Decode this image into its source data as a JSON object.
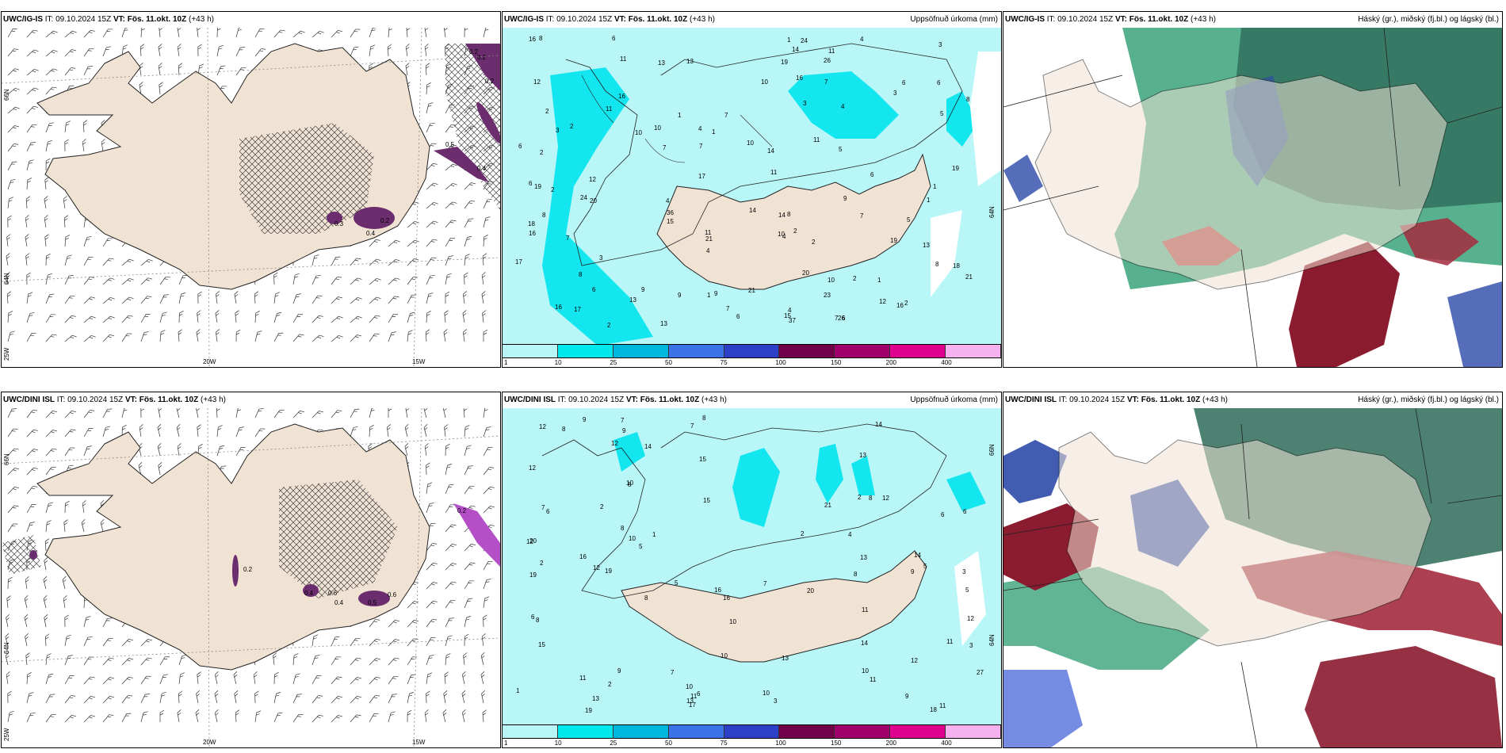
{
  "panels": [
    {
      "model": "UWC/IG-IS",
      "it_label": "IT:",
      "it": "09.10.2024 15Z",
      "vt_label": "VT:",
      "vt": "Fös. 11.okt. 10Z",
      "lead": "(+43 h)",
      "right": "",
      "grid_x": [
        "20W",
        "15W"
      ],
      "grid_y": [
        "66N",
        "64N",
        "25W"
      ],
      "contour_labels": [
        "0.2",
        "0.2",
        "0.2",
        "0.5",
        "0.4",
        "0.3",
        "0.4",
        "0.2"
      ]
    },
    {
      "model": "UWC/IG-IS",
      "it_label": "IT:",
      "it": "09.10.2024 15Z",
      "vt_label": "VT:",
      "vt": "Fös. 11.okt. 10Z",
      "lead": "(+43 h)",
      "right": "Uppsöfnuð úrkoma (mm)",
      "grid_y": [
        "64N"
      ],
      "precip": [
        "2",
        "2",
        "3",
        "4",
        "4",
        "7",
        "6",
        "8",
        "7",
        "10",
        "6",
        "6",
        "7",
        "11",
        "19",
        "18",
        "11",
        "16",
        "13",
        "11",
        "18",
        "14",
        "21",
        "17",
        "16",
        "24",
        "23",
        "19",
        "24",
        "21",
        "19",
        "15",
        "13",
        "12",
        "14",
        "6",
        "26",
        "17",
        "16",
        "16",
        "12",
        "10",
        "8",
        "13",
        "11",
        "10",
        "12",
        "4",
        "9",
        "5",
        "16",
        "3",
        "6",
        "8",
        "7",
        "6",
        "9",
        "11",
        "15",
        "14",
        "19",
        "10",
        "9",
        "8",
        "16",
        "13",
        "37",
        "20",
        "21",
        "13",
        "11",
        "10",
        "7",
        "20",
        "17",
        "14",
        "26",
        "36",
        "5",
        "4",
        "5",
        "7",
        "8",
        "6",
        "4",
        "2",
        "2",
        "1",
        "3",
        "4",
        "2",
        "1",
        "3",
        "2",
        "1",
        "2",
        "1",
        "4",
        "9",
        "8",
        "6",
        "7",
        "6",
        "7",
        "10",
        "2",
        "3",
        "1",
        "1",
        "1",
        "2"
      ]
    },
    {
      "model": "UWC/IG-IS",
      "it_label": "IT:",
      "it": "09.10.2024 15Z",
      "vt_label": "VT:",
      "vt": "Fös. 11.okt. 10Z",
      "lead": "(+43 h)",
      "right": "Háský (gr.), miðský (fj.bl.) og lágský (bl.)"
    },
    {
      "model": "UWC/DINI ISL",
      "it_label": "IT:",
      "it": "09.10.2024 15Z",
      "vt_label": "VT:",
      "vt": "Fös. 11.okt. 10Z",
      "lead": "(+43 h)",
      "right": "",
      "grid_x": [
        "20W",
        "15W"
      ],
      "grid_y": [
        "66N",
        "64N",
        "25W"
      ],
      "contour_labels": [
        "0.2",
        "0.4",
        "0.6",
        "0.2",
        "0.5",
        "0.4",
        "0.6"
      ]
    },
    {
      "model": "UWC/DINI ISL",
      "it_label": "IT:",
      "it": "09.10.2024 15Z",
      "vt_label": "VT:",
      "vt": "Fös. 11.okt. 10Z",
      "lead": "(+43 h)",
      "right": "Uppsöfnuð úrkoma (mm)",
      "grid_y": [
        "66N",
        "64N"
      ],
      "precip": [
        "2",
        "3",
        "5",
        "7",
        "6",
        "9",
        "11",
        "10",
        "8",
        "12",
        "8",
        "14",
        "16",
        "18",
        "20",
        "27",
        "19",
        "15",
        "12",
        "13",
        "19",
        "21",
        "20",
        "11",
        "19",
        "14",
        "16",
        "14",
        "12",
        "10",
        "8",
        "14",
        "15",
        "9",
        "10",
        "11",
        "13",
        "16",
        "12",
        "10",
        "9",
        "5",
        "7",
        "11",
        "8",
        "12",
        "6",
        "3",
        "2",
        "7",
        "10",
        "11",
        "13",
        "12",
        "8",
        "6",
        "8",
        "11",
        "13",
        "9",
        "12",
        "10",
        "8",
        "8",
        "13",
        "15",
        "12",
        "7",
        "9",
        "4",
        "6",
        "5",
        "2",
        "1",
        "3",
        "2",
        "1",
        "17",
        "7",
        "10",
        "5",
        "6",
        "2"
      ]
    },
    {
      "model": "UWC/DINI ISL",
      "it_label": "IT:",
      "it": "09.10.2024 15Z",
      "vt_label": "VT:",
      "vt": "Fös. 11.okt. 10Z",
      "lead": "(+43 h)",
      "right": "Háský (gr.), miðský (fj.bl.) og lágský (bl.)"
    }
  ],
  "colorbar": {
    "ticks": [
      "1",
      "10",
      "25",
      "50",
      "75",
      "100",
      "150",
      "200",
      "400"
    ],
    "colors": [
      "#b7f5f7",
      "#00e8ee",
      "#00b8dd",
      "#3a73e8",
      "#2d3fc7",
      "#70004a",
      "#a0006c",
      "#e0008e",
      "#f6b2ef"
    ]
  },
  "colors": {
    "land": "#f1e3d4",
    "sea_precip": "#b9f6f8",
    "precip_light": "#13e6ef",
    "cloud_high": "#3aa37a",
    "cloud_mid": "#2c4aa8",
    "cloud_low": "#8b1b2f",
    "ice_purple": "#6b2d6d"
  }
}
